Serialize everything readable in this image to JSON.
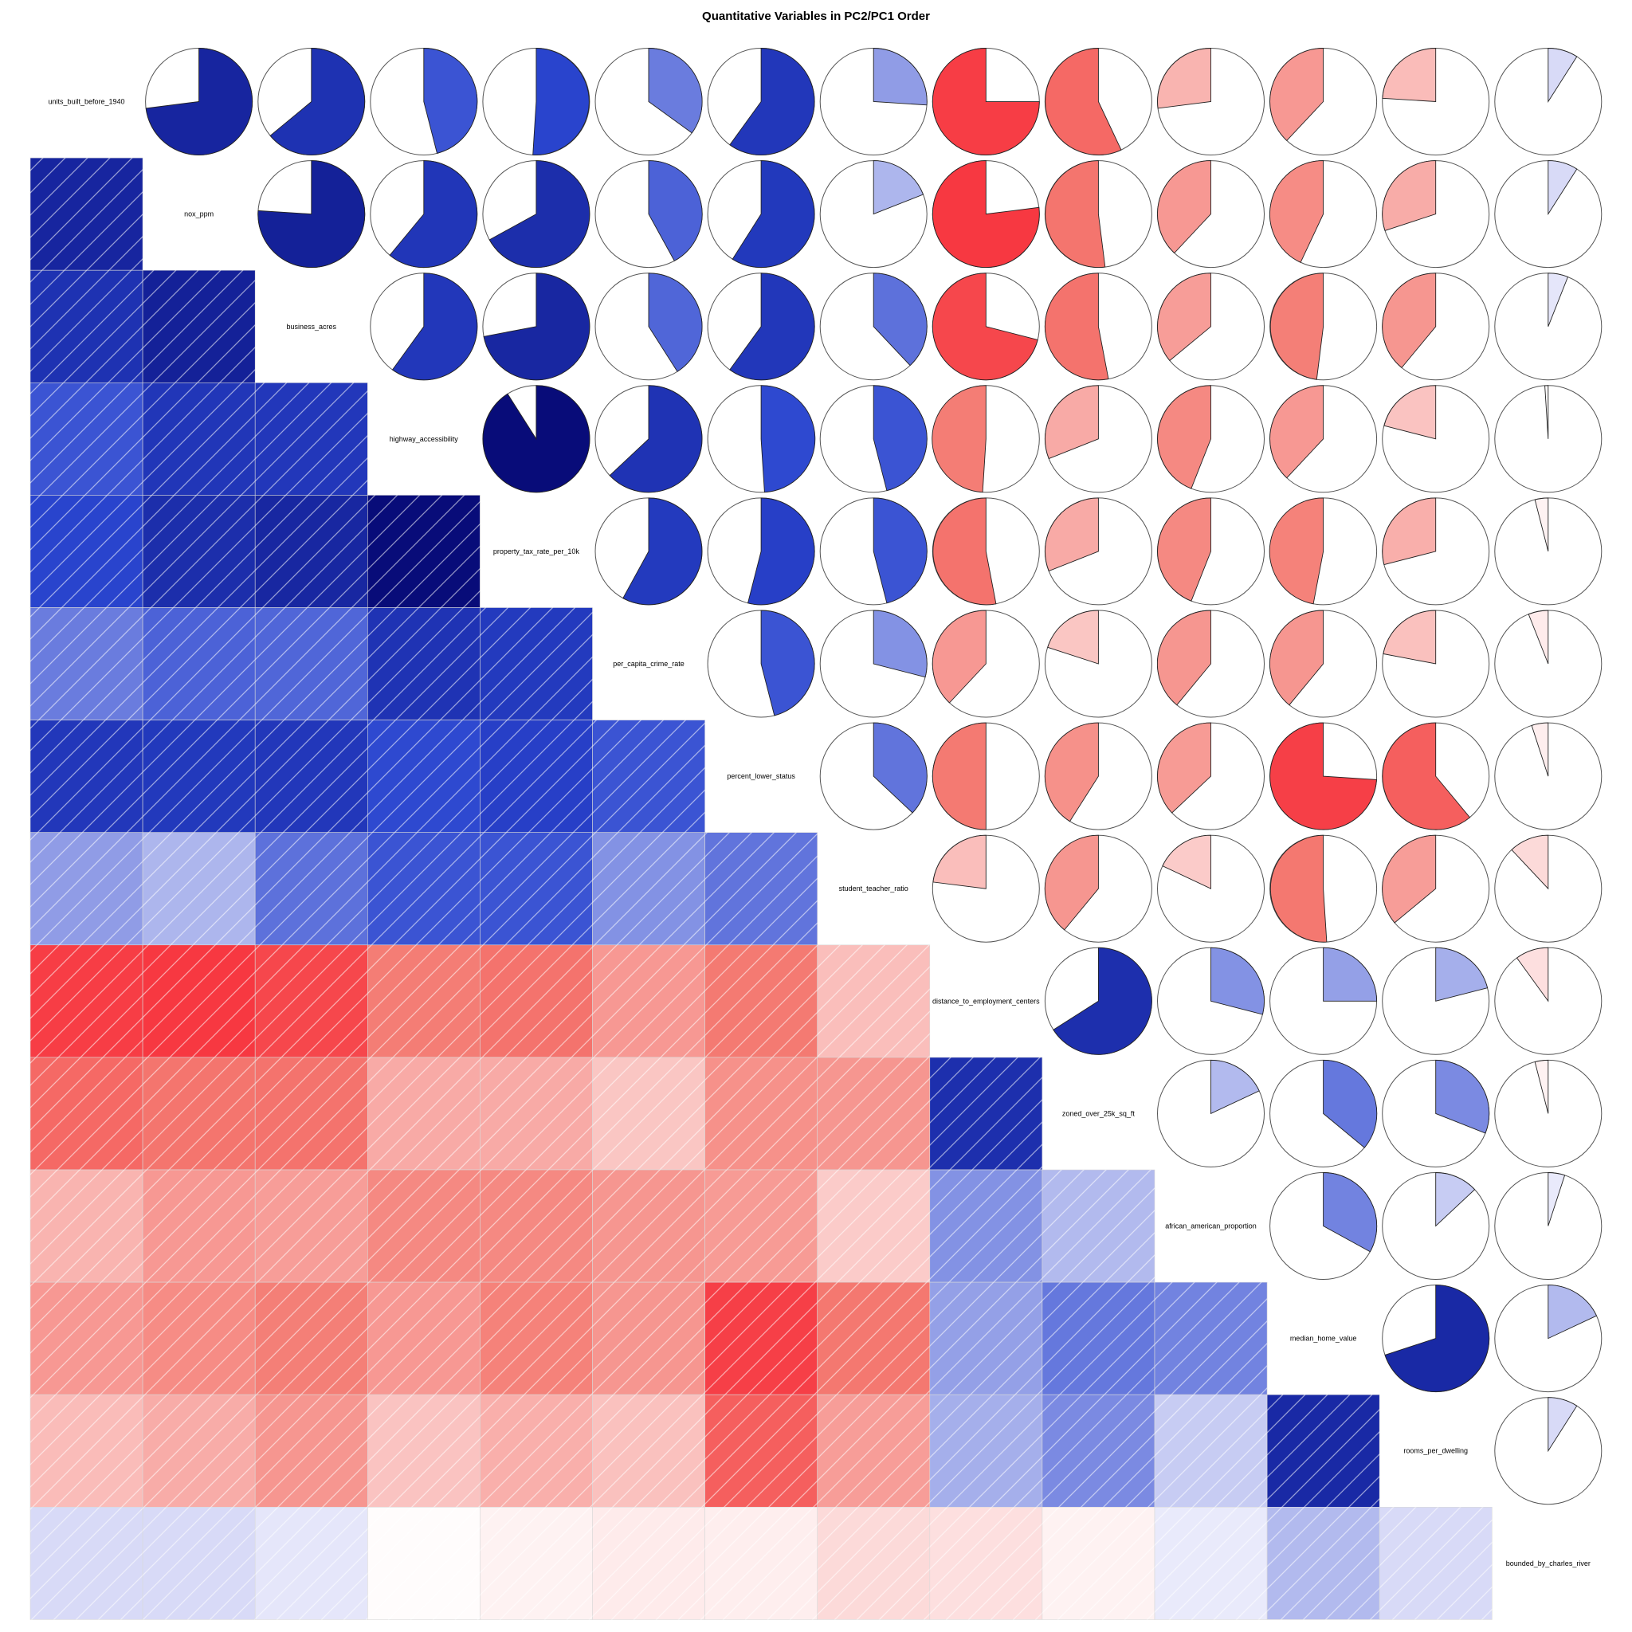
{
  "chart_data": {
    "type": "heatmap",
    "title": "Quantitative Variables in PC2/PC1 Order",
    "lower_panel": "shade",
    "upper_panel": "pie",
    "variables": [
      "units_built_before_1940",
      "nox_ppm",
      "business_acres",
      "highway_accessibility",
      "property_tax_rate_per_10k",
      "per_capita_crime_rate",
      "percent_lower_status",
      "student_teacher_ratio",
      "distance_to_employment_centers",
      "zoned_over_25k_sq_ft",
      "african_american_proportion",
      "median_home_value",
      "rooms_per_dwelling",
      "bounded_by_charles_river"
    ],
    "correlation_matrix": [
      [
        1.0,
        0.73,
        0.64,
        0.46,
        0.51,
        0.35,
        0.6,
        0.26,
        -0.75,
        -0.57,
        -0.27,
        -0.38,
        -0.24,
        0.09
      ],
      [
        0.73,
        1.0,
        0.76,
        0.61,
        0.67,
        0.42,
        0.59,
        0.19,
        -0.77,
        -0.52,
        -0.38,
        -0.43,
        -0.3,
        0.09
      ],
      [
        0.64,
        0.76,
        1.0,
        0.6,
        0.72,
        0.41,
        0.6,
        0.38,
        -0.71,
        -0.53,
        -0.36,
        -0.48,
        -0.39,
        0.06
      ],
      [
        0.46,
        0.61,
        0.6,
        1.0,
        0.91,
        0.63,
        0.49,
        0.46,
        -0.49,
        -0.31,
        -0.44,
        -0.38,
        -0.21,
        -0.01
      ],
      [
        0.51,
        0.67,
        0.72,
        0.91,
        1.0,
        0.58,
        0.54,
        0.46,
        -0.53,
        -0.31,
        -0.44,
        -0.47,
        -0.29,
        -0.04
      ],
      [
        0.35,
        0.42,
        0.41,
        0.63,
        0.58,
        1.0,
        0.46,
        0.29,
        -0.38,
        -0.2,
        -0.39,
        -0.39,
        -0.22,
        -0.06
      ],
      [
        0.6,
        0.59,
        0.6,
        0.49,
        0.54,
        0.46,
        1.0,
        0.37,
        -0.5,
        -0.41,
        -0.37,
        -0.74,
        -0.61,
        -0.05
      ],
      [
        0.26,
        0.19,
        0.38,
        0.46,
        0.46,
        0.29,
        0.37,
        1.0,
        -0.23,
        -0.39,
        -0.18,
        -0.51,
        -0.36,
        -0.12
      ],
      [
        -0.75,
        -0.77,
        -0.71,
        -0.49,
        -0.53,
        -0.38,
        -0.5,
        -0.23,
        1.0,
        0.66,
        0.29,
        0.25,
        0.21,
        -0.1
      ],
      [
        -0.57,
        -0.52,
        -0.53,
        -0.31,
        -0.31,
        -0.2,
        -0.41,
        -0.39,
        0.66,
        1.0,
        0.18,
        0.36,
        0.31,
        -0.04
      ],
      [
        -0.27,
        -0.38,
        -0.36,
        -0.44,
        -0.44,
        -0.39,
        -0.37,
        -0.18,
        0.29,
        0.18,
        1.0,
        0.33,
        0.13,
        0.05
      ],
      [
        -0.38,
        -0.43,
        -0.48,
        -0.38,
        -0.47,
        -0.39,
        -0.74,
        -0.51,
        0.25,
        0.36,
        0.33,
        1.0,
        0.7,
        0.18
      ],
      [
        -0.24,
        -0.3,
        -0.39,
        -0.21,
        -0.29,
        -0.22,
        -0.61,
        -0.36,
        0.21,
        0.31,
        0.13,
        0.7,
        1.0,
        0.09
      ],
      [
        0.09,
        0.09,
        0.06,
        -0.01,
        -0.04,
        -0.06,
        -0.05,
        -0.12,
        -0.1,
        -0.04,
        0.05,
        0.18,
        0.09,
        1.0
      ]
    ],
    "colors": {
      "positive_strong": "#000066",
      "positive_mid": "#2A45CF",
      "positive_light": "#DCDEF8",
      "negative_light": "#FDE4E4",
      "negative_mid": "#F47A72",
      "negative_strong": "#F90018"
    }
  }
}
